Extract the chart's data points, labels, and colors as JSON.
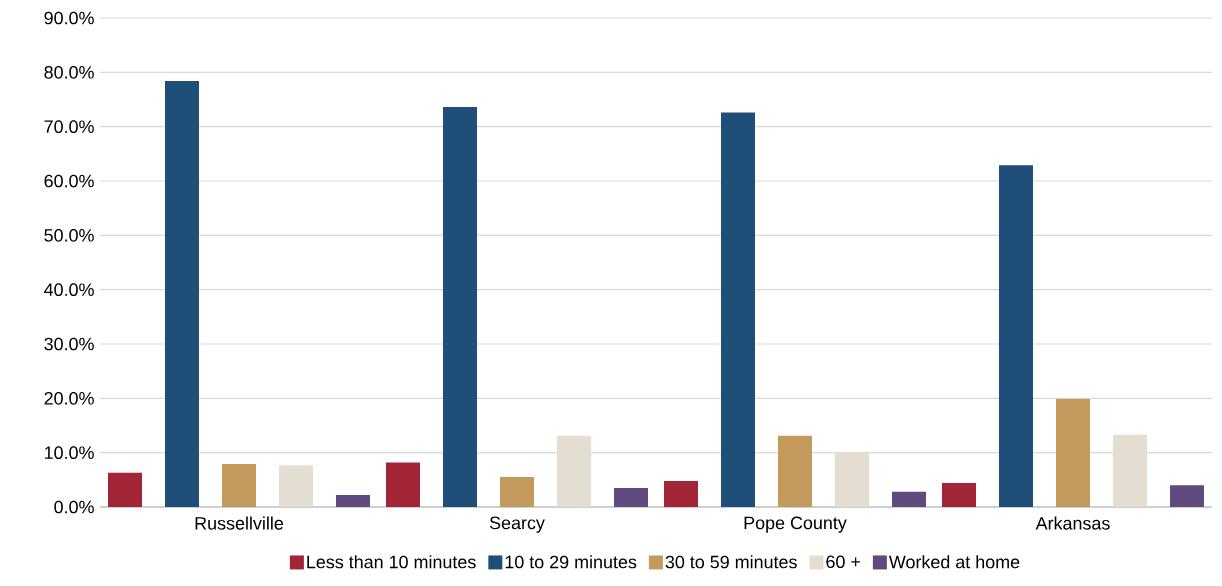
{
  "chart_data": {
    "type": "bar",
    "categories": [
      "Russellville",
      "Searcy",
      "Pope County",
      "Arkansas"
    ],
    "series": [
      {
        "name": "Less than 10 minutes",
        "color": "#a32638",
        "values": [
          6.3,
          8.2,
          4.8,
          4.4
        ]
      },
      {
        "name": "10 to 29 minutes",
        "color": "#1f4e79",
        "values": [
          78.4,
          73.6,
          72.6,
          62.9
        ]
      },
      {
        "name": "30 to 59 minutes",
        "color": "#c39a5c",
        "values": [
          7.9,
          5.5,
          13.1,
          19.9
        ]
      },
      {
        "name": "60 +",
        "color": "#e3ddd2",
        "values": [
          7.7,
          13.1,
          10.1,
          13.3
        ]
      },
      {
        "name": "Worked at home",
        "color": "#5f4b7f",
        "values": [
          2.2,
          3.5,
          2.8,
          4.0
        ]
      }
    ],
    "ylim": [
      0,
      90
    ],
    "yticks": [
      {
        "value": 0,
        "label": "0.0%"
      },
      {
        "value": 10,
        "label": "10.0%"
      },
      {
        "value": 20,
        "label": "20.0%"
      },
      {
        "value": 30,
        "label": "30.0%"
      },
      {
        "value": 40,
        "label": "40.0%"
      },
      {
        "value": 50,
        "label": "50.0%"
      },
      {
        "value": 60,
        "label": "60.0%"
      },
      {
        "value": 70,
        "label": "70.0%"
      },
      {
        "value": 80,
        "label": "80.0%"
      },
      {
        "value": 90,
        "label": "90.0%"
      }
    ],
    "grid": "y",
    "legend": "bottom"
  }
}
